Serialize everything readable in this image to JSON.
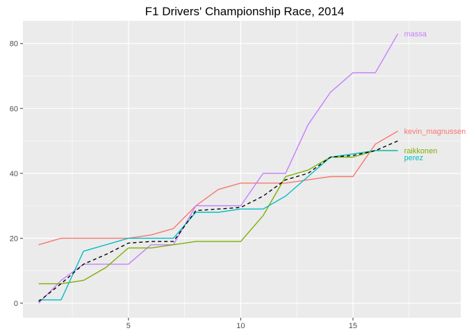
{
  "chart_data": {
    "type": "line",
    "title": "F1 Drivers' Championship Race, 2014",
    "xlabel": "",
    "ylabel": "",
    "xlim": [
      0.3,
      19.8
    ],
    "ylim": [
      -4.5,
      87
    ],
    "x_ticks": [
      5,
      10,
      15
    ],
    "y_ticks": [
      0,
      20,
      40,
      60,
      80
    ],
    "grid": true,
    "legend": "direct labels at line ends",
    "x": [
      1,
      2,
      3,
      4,
      5,
      6,
      7,
      8,
      9,
      10,
      11,
      12,
      13,
      14,
      15,
      16,
      17
    ],
    "series": [
      {
        "name": "kevin_magnussen",
        "color": "#F8766D",
        "values": [
          18,
          20,
          20,
          20,
          20,
          21,
          23,
          30,
          35,
          37,
          37,
          37,
          38,
          39,
          39,
          49,
          53
        ]
      },
      {
        "name": "massa",
        "color": "#C77CFF",
        "values": [
          0,
          7,
          12,
          12,
          12,
          18,
          18,
          30,
          30,
          30,
          40,
          40,
          55,
          65,
          71,
          71,
          83
        ]
      },
      {
        "name": "raikkonen",
        "color": "#7CAE00",
        "values": [
          6,
          6,
          7,
          11,
          17,
          17,
          18,
          19,
          19,
          19,
          27,
          39,
          41,
          45,
          45,
          47,
          47
        ]
      },
      {
        "name": "perez",
        "color": "#00BFC4",
        "values": [
          1,
          1,
          16,
          18,
          20,
          20,
          20,
          28,
          28,
          29,
          29,
          33,
          39,
          45,
          46,
          47,
          47
        ]
      }
    ],
    "average": {
      "style": "dashed",
      "color": "#000000",
      "values": [
        0.5,
        6,
        12,
        15,
        18.5,
        19,
        19,
        28.5,
        29,
        29.5,
        33,
        38,
        40,
        45,
        45.5,
        47,
        50
      ]
    }
  }
}
